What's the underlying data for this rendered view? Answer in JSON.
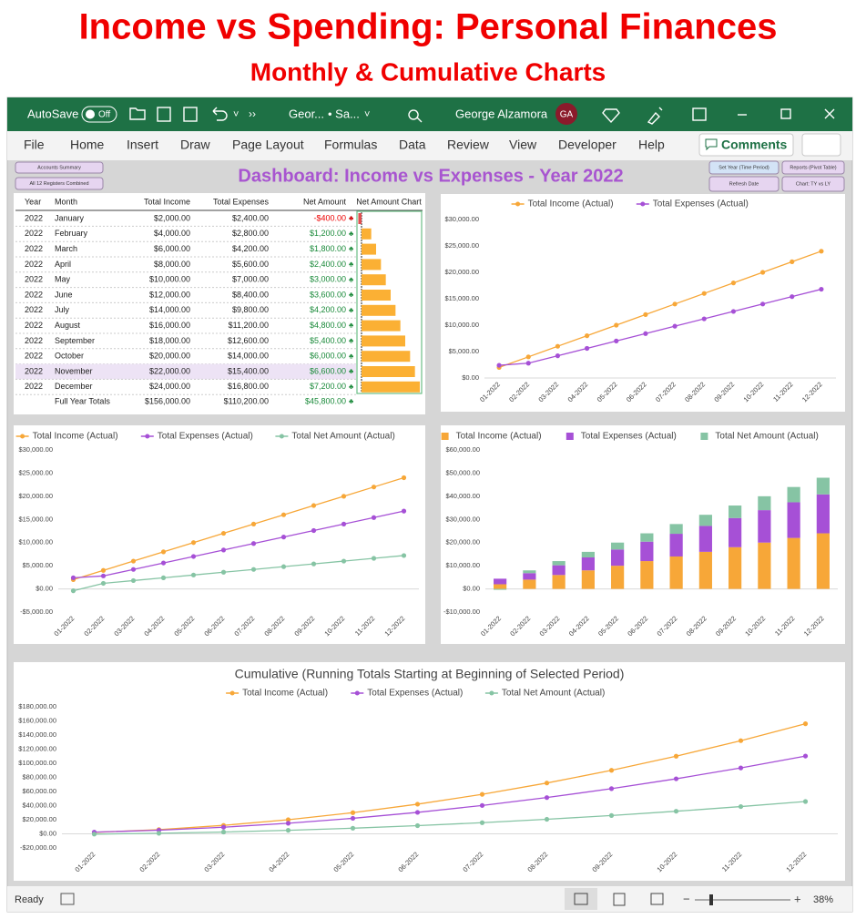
{
  "header": {
    "title": "Income vs Spending: Personal Finances",
    "subtitle": "Monthly & Cumulative Charts"
  },
  "titlebar": {
    "autosave": "AutoSave",
    "toggle": "Off",
    "file": "Geor...",
    "saved": "• Sa...",
    "user": "George Alzamora",
    "initials": "GA"
  },
  "menu": [
    "File",
    "Home",
    "Insert",
    "Draw",
    "Page Layout",
    "Formulas",
    "Data",
    "Review",
    "View",
    "Developer",
    "Help"
  ],
  "comments": "Comments",
  "dashboard": {
    "title": "Dashboard: Income vs Expenses - Year 2022",
    "buttons": [
      "Accounts Summary",
      "All 12 Registers Combined",
      "Set Year (Time Period)",
      "Reports (Pivot Table)",
      "Refresh Date",
      "Chart: TY vs LY"
    ]
  },
  "table": {
    "columns": [
      "Year",
      "Month",
      "Total Income",
      "Total Expenses",
      "Net Amount",
      "Net Amount Chart"
    ],
    "rows": [
      [
        2022,
        "January",
        {
          "value": 2000,
          "label": "$2,000.00"
        },
        {
          "value": 2400,
          "label": "$2,400.00"
        },
        {
          "value": -400,
          "label": "-$400.00"
        }
      ],
      [
        2022,
        "February",
        {
          "value": 4000,
          "label": "$4,000.00"
        },
        {
          "value": 2800,
          "label": "$2,800.00"
        },
        {
          "value": 1200,
          "label": "$1,200.00"
        }
      ],
      [
        2022,
        "March",
        {
          "value": 6000,
          "label": "$6,000.00"
        },
        {
          "value": 4200,
          "label": "$4,200.00"
        },
        {
          "value": 1800,
          "label": "$1,800.00"
        }
      ],
      [
        2022,
        "April",
        {
          "value": 8000,
          "label": "$8,000.00"
        },
        {
          "value": 5600,
          "label": "$5,600.00"
        },
        {
          "value": 2400,
          "label": "$2,400.00"
        }
      ],
      [
        2022,
        "May",
        {
          "value": 10000,
          "label": "$10,000.00"
        },
        {
          "value": 7000,
          "label": "$7,000.00"
        },
        {
          "value": 3000,
          "label": "$3,000.00"
        }
      ],
      [
        2022,
        "June",
        {
          "value": 12000,
          "label": "$12,000.00"
        },
        {
          "value": 8400,
          "label": "$8,400.00"
        },
        {
          "value": 3600,
          "label": "$3,600.00"
        }
      ],
      [
        2022,
        "July",
        {
          "value": 14000,
          "label": "$14,000.00"
        },
        {
          "value": 9800,
          "label": "$9,800.00"
        },
        {
          "value": 4200,
          "label": "$4,200.00"
        }
      ],
      [
        2022,
        "August",
        {
          "value": 16000,
          "label": "$16,000.00"
        },
        {
          "value": 11200,
          "label": "$11,200.00"
        },
        {
          "value": 4800,
          "label": "$4,800.00"
        }
      ],
      [
        2022,
        "September",
        {
          "value": 18000,
          "label": "$18,000.00"
        },
        {
          "value": 12600,
          "label": "$12,600.00"
        },
        {
          "value": 5400,
          "label": "$5,400.00"
        }
      ],
      [
        2022,
        "October",
        {
          "value": 20000,
          "label": "$20,000.00"
        },
        {
          "value": 14000,
          "label": "$14,000.00"
        },
        {
          "value": 6000,
          "label": "$6,000.00"
        }
      ],
      [
        2022,
        "November",
        {
          "value": 22000,
          "label": "$22,000.00"
        },
        {
          "value": 15400,
          "label": "$15,400.00"
        },
        {
          "value": 6600,
          "label": "$6,600.00"
        }
      ],
      [
        2022,
        "December",
        {
          "value": 24000,
          "label": "$24,000.00"
        },
        {
          "value": 16800,
          "label": "$16,800.00"
        },
        {
          "value": 7200,
          "label": "$7,200.00"
        }
      ]
    ],
    "totals": [
      "Full Year Totals",
      {
        "value": 156000,
        "label": "$156,000.00"
      },
      {
        "value": 110200,
        "label": "$110,200.00"
      },
      {
        "value": 45800,
        "label": "$45,800.00"
      }
    ]
  },
  "chart_data": [
    {
      "type": "line",
      "categories": [
        "01-2022",
        "02-2022",
        "03-2022",
        "04-2022",
        "05-2022",
        "06-2022",
        "07-2022",
        "08-2022",
        "09-2022",
        "10-2022",
        "11-2022",
        "12-2022"
      ],
      "series": [
        {
          "name": "Total Income (Actual)",
          "color": "#f7a738",
          "values": [
            2000,
            4000,
            6000,
            8000,
            10000,
            12000,
            14000,
            16000,
            18000,
            20000,
            22000,
            24000
          ]
        },
        {
          "name": "Total Expenses (Actual)",
          "color": "#a650d6",
          "values": [
            2400,
            2800,
            4200,
            5600,
            7000,
            8400,
            9800,
            11200,
            12600,
            14000,
            15400,
            16800
          ]
        }
      ],
      "ylim": [
        0,
        30000
      ],
      "yticks": [
        {
          "value": 0,
          "label": "$0.00"
        },
        {
          "value": 5000,
          "label": "$5,000.00"
        },
        {
          "value": 10000,
          "label": "$10,000.00"
        },
        {
          "value": 15000,
          "label": "$15,000.00"
        },
        {
          "value": 20000,
          "label": "$20,000.00"
        },
        {
          "value": 25000,
          "label": "$25,000.00"
        },
        {
          "value": 30000,
          "label": "$30,000.00"
        }
      ],
      "legend": "top",
      "grid": false
    },
    {
      "type": "line",
      "categories": [
        "01-2022",
        "02-2022",
        "03-2022",
        "04-2022",
        "05-2022",
        "06-2022",
        "07-2022",
        "08-2022",
        "09-2022",
        "10-2022",
        "11-2022",
        "12-2022"
      ],
      "series": [
        {
          "name": "Total Income (Actual)",
          "color": "#f7a738",
          "values": [
            2000,
            4000,
            6000,
            8000,
            10000,
            12000,
            14000,
            16000,
            18000,
            20000,
            22000,
            24000
          ]
        },
        {
          "name": "Total Expenses (Actual)",
          "color": "#a650d6",
          "values": [
            2400,
            2800,
            4200,
            5600,
            7000,
            8400,
            9800,
            11200,
            12600,
            14000,
            15400,
            16800
          ]
        },
        {
          "name": "Total Net Amount (Actual)",
          "color": "#86c4a4",
          "values": [
            -400,
            1200,
            1800,
            2400,
            3000,
            3600,
            4200,
            4800,
            5400,
            6000,
            6600,
            7200
          ]
        }
      ],
      "ylim": [
        -5000,
        30000
      ],
      "yticks": [
        {
          "value": -5000,
          "label": "-$5,000.00"
        },
        {
          "value": 0,
          "label": "$0.00"
        },
        {
          "value": 5000,
          "label": "$5,000.00"
        },
        {
          "value": 10000,
          "label": "$10,000.00"
        },
        {
          "value": 15000,
          "label": "$15,000.00"
        },
        {
          "value": 20000,
          "label": "$20,000.00"
        },
        {
          "value": 25000,
          "label": "$25,000.00"
        },
        {
          "value": 30000,
          "label": "$30,000.00"
        }
      ],
      "legend": "top",
      "grid": false
    },
    {
      "type": "bar",
      "stacked": true,
      "categories": [
        "01-2022",
        "02-2022",
        "03-2022",
        "04-2022",
        "05-2022",
        "06-2022",
        "07-2022",
        "08-2022",
        "09-2022",
        "10-2022",
        "11-2022",
        "12-2022"
      ],
      "series": [
        {
          "name": "Total Income (Actual)",
          "color": "#f7a738",
          "values": [
            2000,
            4000,
            6000,
            8000,
            10000,
            12000,
            14000,
            16000,
            18000,
            20000,
            22000,
            24000
          ]
        },
        {
          "name": "Total Expenses (Actual)",
          "color": "#a650d6",
          "values": [
            2400,
            2800,
            4200,
            5600,
            7000,
            8400,
            9800,
            11200,
            12600,
            14000,
            15400,
            16800
          ]
        },
        {
          "name": "Total Net Amount (Actual)",
          "color": "#86c4a4",
          "values": [
            -400,
            1200,
            1800,
            2400,
            3000,
            3600,
            4200,
            4800,
            5400,
            6000,
            6600,
            7200
          ]
        }
      ],
      "ylim": [
        -10000,
        60000
      ],
      "yticks": [
        {
          "value": -10000,
          "label": "-$10,000.00"
        },
        {
          "value": 0,
          "label": "$0.00"
        },
        {
          "value": 10000,
          "label": "$10,000.00"
        },
        {
          "value": 20000,
          "label": "$20,000.00"
        },
        {
          "value": 30000,
          "label": "$30,000.00"
        },
        {
          "value": 40000,
          "label": "$40,000.00"
        },
        {
          "value": 50000,
          "label": "$50,000.00"
        },
        {
          "value": 60000,
          "label": "$60,000.00"
        }
      ],
      "legend": "top",
      "grid": false
    },
    {
      "type": "line",
      "title": "Cumulative (Running Totals Starting at Beginning of Selected Period)",
      "categories": [
        "01-2022",
        "02-2022",
        "03-2022",
        "04-2022",
        "05-2022",
        "06-2022",
        "07-2022",
        "08-2022",
        "09-2022",
        "10-2022",
        "11-2022",
        "12-2022"
      ],
      "series": [
        {
          "name": "Total Income (Actual)",
          "color": "#f7a738",
          "values": [
            2000,
            6000,
            12000,
            20000,
            30000,
            42000,
            56000,
            72000,
            90000,
            110000,
            132000,
            156000
          ]
        },
        {
          "name": "Total Expenses (Actual)",
          "color": "#a650d6",
          "values": [
            2400,
            5200,
            9400,
            15000,
            22000,
            30400,
            40200,
            51400,
            64000,
            78000,
            93400,
            110200
          ]
        },
        {
          "name": "Total Net Amount (Actual)",
          "color": "#86c4a4",
          "values": [
            -400,
            800,
            2600,
            5000,
            8000,
            11600,
            15800,
            20600,
            26000,
            32000,
            38600,
            45800
          ]
        }
      ],
      "ylim": [
        -20000,
        180000
      ],
      "yticks": [
        {
          "value": -20000,
          "label": "-$20,000.00"
        },
        {
          "value": 0,
          "label": "$0.00"
        },
        {
          "value": 20000,
          "label": "$20,000.00"
        },
        {
          "value": 40000,
          "label": "$40,000.00"
        },
        {
          "value": 60000,
          "label": "$60,000.00"
        },
        {
          "value": 80000,
          "label": "$80,000.00"
        },
        {
          "value": 100000,
          "label": "$100,000.00"
        },
        {
          "value": 120000,
          "label": "$120,000.00"
        },
        {
          "value": 140000,
          "label": "$140,000.00"
        },
        {
          "value": 160000,
          "label": "$160,000.00"
        },
        {
          "value": 180000,
          "label": "$180,000.00"
        }
      ],
      "legend": "top",
      "grid": false
    }
  ],
  "status": {
    "ready": "Ready",
    "zoom": "38%"
  }
}
